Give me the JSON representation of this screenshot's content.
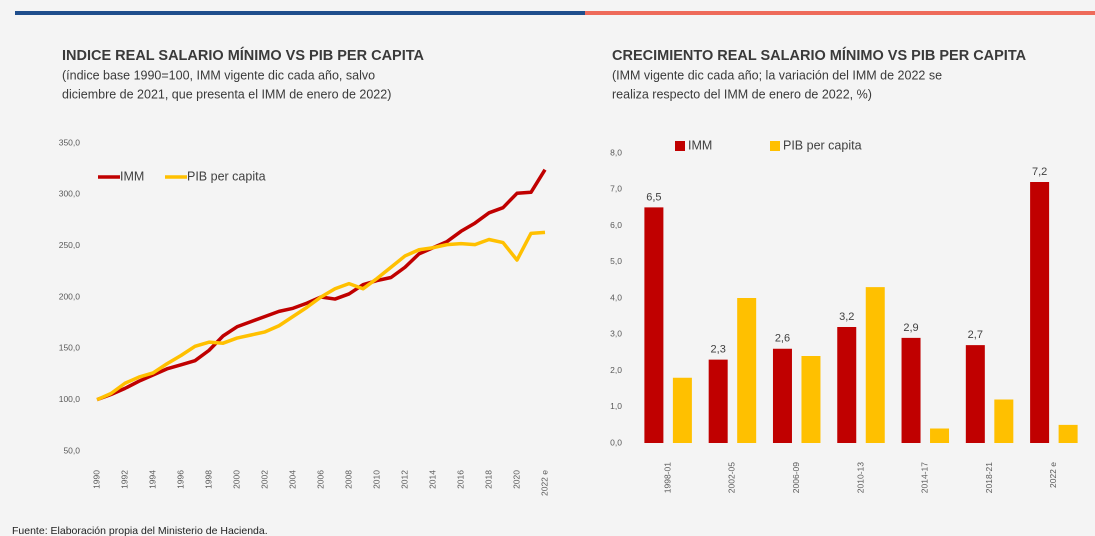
{
  "chart_data": [
    {
      "type": "line",
      "title": "INDICE REAL SALARIO MÍNIMO VS PIB PER CAPITA",
      "subtitle": [
        "(índice base 1990=100, IMM vigente dic cada año, salvo",
        "diciembre de 2021, que presenta el IMM de enero de 2022)"
      ],
      "categories": [
        "1990",
        null,
        "1992",
        null,
        "1994",
        null,
        "1996",
        null,
        "1998",
        null,
        "2000",
        null,
        "2002",
        null,
        "2004",
        null,
        "2006",
        null,
        "2008",
        null,
        "2010",
        null,
        "2012",
        null,
        "2014",
        null,
        "2016",
        null,
        "2018",
        null,
        "2020",
        null,
        "2022 e"
      ],
      "series": [
        {
          "name": "IMM",
          "color": "#c00000",
          "values": [
            100,
            105,
            111,
            118,
            124,
            130,
            134,
            138,
            148,
            162,
            171,
            176,
            181,
            186,
            189,
            194,
            200,
            198,
            203,
            212,
            216,
            219,
            229,
            242,
            248,
            254,
            264,
            272,
            282,
            287,
            301,
            302,
            324
          ]
        },
        {
          "name": "PIB per capita",
          "color": "#ffc000",
          "values": [
            100,
            106,
            116,
            122,
            126,
            135,
            143,
            152,
            156,
            155,
            160,
            163,
            166,
            172,
            181,
            190,
            200,
            208,
            213,
            208,
            218,
            229,
            240,
            246,
            248,
            251,
            252,
            251,
            256,
            253,
            236,
            262,
            263
          ]
        }
      ],
      "ylim": [
        50,
        350
      ],
      "yticks": [
        {
          "value": 50,
          "label": "50,0"
        },
        {
          "value": 100,
          "label": "100,0"
        },
        {
          "value": 150,
          "label": "150,0"
        },
        {
          "value": 200,
          "label": "200,0"
        },
        {
          "value": 250,
          "label": "250,0"
        },
        {
          "value": 300,
          "label": "300,0"
        },
        {
          "value": 350,
          "label": "350,0"
        }
      ],
      "grid": false
    },
    {
      "type": "bar",
      "title": "CRECIMIENTO REAL SALARIO MÍNIMO VS PIB PER CAPITA",
      "subtitle": [
        "(IMM vigente dic cada año; la variación del IMM de 2022 se",
        "realiza respecto del IMM de enero de 2022, %)"
      ],
      "categories": [
        "1998-01",
        "2002-05",
        "2006-09",
        "2010-13",
        "2014-17",
        "2018-21",
        "2022 e"
      ],
      "series": [
        {
          "name": "IMM",
          "color": "#c00000",
          "values": [
            6.5,
            2.3,
            2.6,
            3.2,
            2.9,
            2.7,
            7.2
          ],
          "value_labels": [
            "6,5",
            "2,3",
            "2,6",
            "3,2",
            "2,9",
            "2,7",
            "7,2"
          ]
        },
        {
          "name": "PIB per capita",
          "color": "#ffc000",
          "values": [
            1.8,
            4.0,
            2.4,
            4.3,
            0.4,
            1.2,
            0.5
          ]
        }
      ],
      "ylim": [
        0,
        8
      ],
      "yticks": [
        {
          "value": 0,
          "label": "0,0"
        },
        {
          "value": 1,
          "label": "1,0"
        },
        {
          "value": 2,
          "label": "2,0"
        },
        {
          "value": 3,
          "label": "3,0"
        },
        {
          "value": 4,
          "label": "4,0"
        },
        {
          "value": 5,
          "label": "5,0"
        },
        {
          "value": 6,
          "label": "6,0"
        },
        {
          "value": 7,
          "label": "7,0"
        },
        {
          "value": 8,
          "label": "8,0"
        }
      ],
      "grid": false
    }
  ],
  "source": "Fuente: Elaboración propia del Ministerio de Hacienda."
}
